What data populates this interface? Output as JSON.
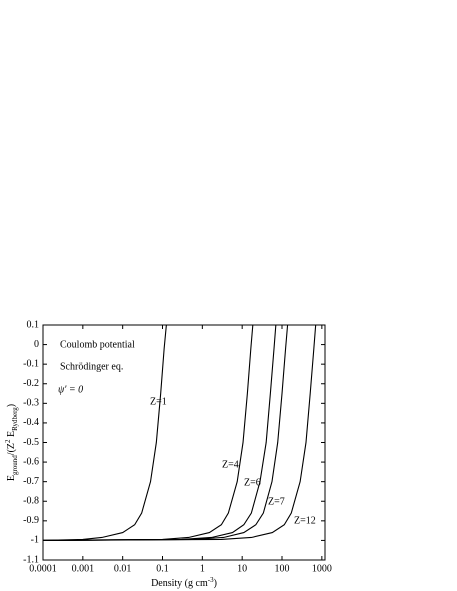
{
  "chart_data": {
    "type": "line",
    "annotations": [
      "Coulomb potential",
      "Schrödinger eq.",
      "ψ′ = 0"
    ],
    "xlabel": [
      "Density (g cm",
      "-3",
      ")"
    ],
    "ylabel": [
      "E",
      "ground",
      "/(Z",
      "2",
      " E",
      "Rydberg",
      ")"
    ],
    "log_x": true,
    "xlim": [
      0.0001,
      1200
    ],
    "xticks": [
      0.0001,
      0.001,
      0.01,
      0.1,
      1,
      10,
      100,
      1000
    ],
    "ylim": [
      -1.1,
      0.1
    ],
    "yticks": [
      0.1,
      0,
      -0.1,
      -0.2,
      -0.3,
      -0.4,
      -0.5,
      -0.6,
      -0.7,
      -0.8,
      -0.9,
      -1,
      -1.1
    ],
    "series": [
      {
        "name": "Z=1",
        "color": "#000000",
        "x": [
          0.0001,
          0.001,
          0.003,
          0.01,
          0.02,
          0.03,
          0.05,
          0.07,
          0.09,
          0.11,
          0.125
        ],
        "values": [
          -1,
          -0.995,
          -0.985,
          -0.96,
          -0.92,
          -0.86,
          -0.7,
          -0.5,
          -0.25,
          -0.02,
          0.1
        ]
      },
      {
        "name": "Z=4",
        "color": "#000000",
        "x": [
          0.0001,
          0.1,
          0.45,
          1.5,
          3,
          4.5,
          7.5,
          10.5,
          13.5,
          16.5,
          18.5
        ],
        "values": [
          -1,
          -0.995,
          -0.985,
          -0.96,
          -0.92,
          -0.86,
          -0.7,
          -0.5,
          -0.25,
          -0.02,
          0.1
        ]
      },
      {
        "name": "Z=6",
        "color": "#000000",
        "x": [
          0.0001,
          0.3,
          1.7,
          5.7,
          11,
          17,
          28,
          40,
          51,
          63,
          70
        ],
        "values": [
          -1,
          -0.995,
          -0.985,
          -0.96,
          -0.92,
          -0.86,
          -0.7,
          -0.5,
          -0.25,
          -0.02,
          0.1
        ]
      },
      {
        "name": "Z=7",
        "color": "#000000",
        "x": [
          0.0001,
          0.6,
          3.4,
          11,
          22,
          34,
          56,
          78,
          100,
          123,
          138
        ],
        "values": [
          -1,
          -0.995,
          -0.985,
          -0.96,
          -0.92,
          -0.86,
          -0.7,
          -0.5,
          -0.25,
          -0.02,
          0.1
        ]
      },
      {
        "name": "Z=12",
        "color": "#000000",
        "x": [
          0.0001,
          3,
          17,
          57,
          114,
          171,
          285,
          400,
          510,
          630,
          700
        ],
        "values": [
          -1,
          -0.995,
          -0.985,
          -0.96,
          -0.92,
          -0.86,
          -0.7,
          -0.5,
          -0.25,
          -0.02,
          0.1
        ]
      }
    ]
  }
}
